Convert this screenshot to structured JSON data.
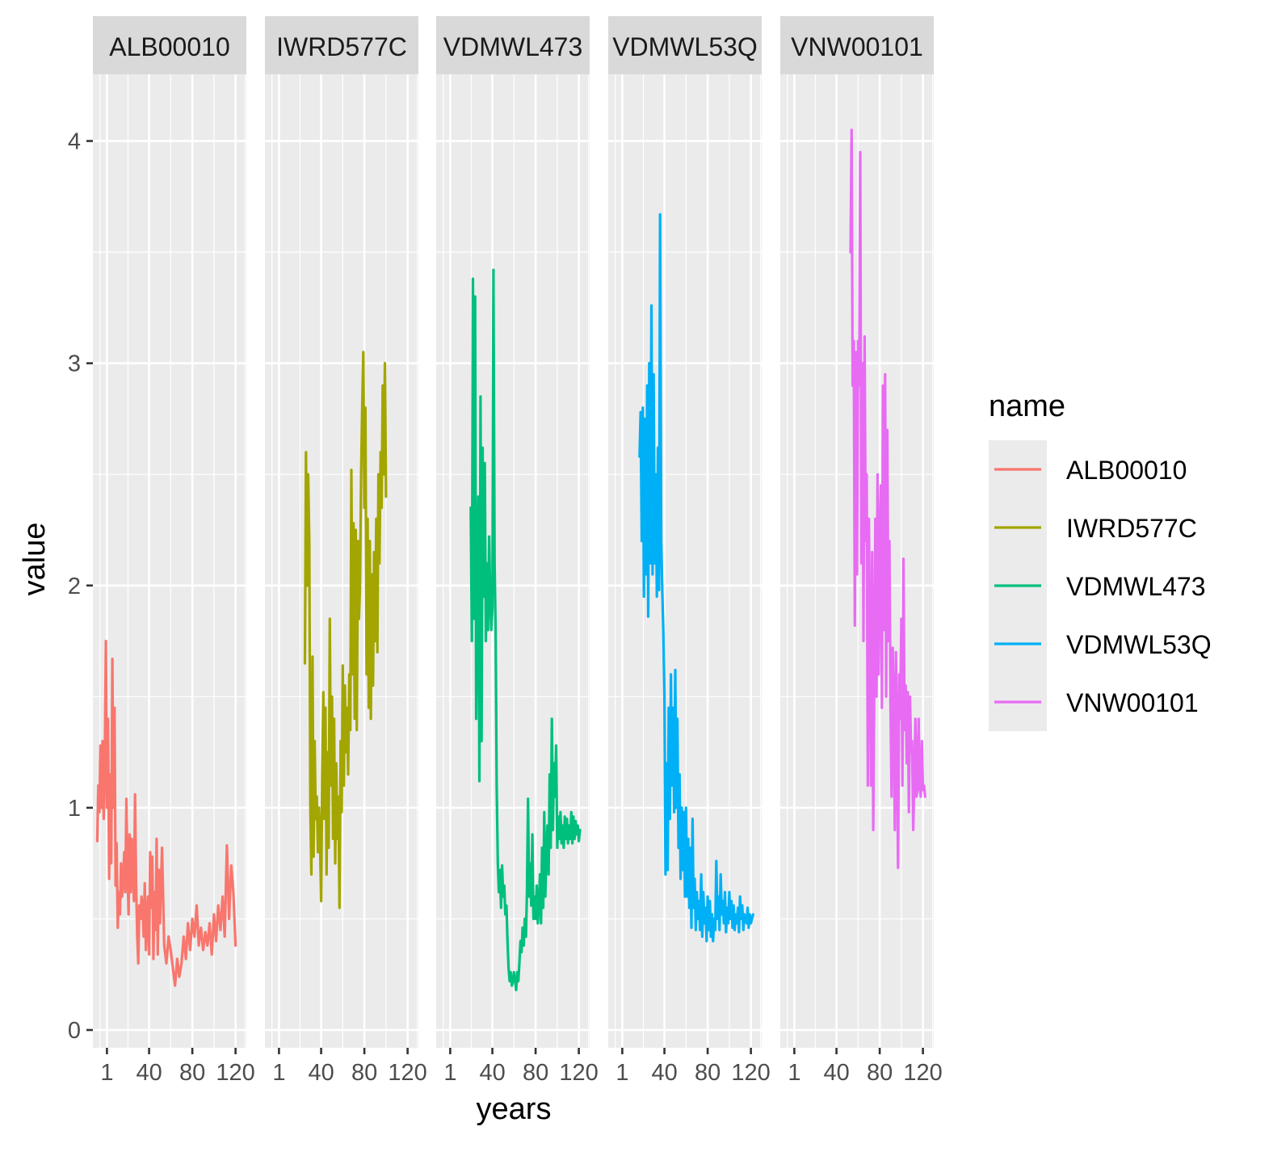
{
  "chart_data": {
    "type": "line",
    "faceted": true,
    "xlabel": "years",
    "ylabel": "value",
    "xlim": [
      -12,
      130
    ],
    "ylim": [
      -0.08,
      4.3
    ],
    "x_ticks": [
      1,
      40,
      80,
      120
    ],
    "y_ticks": [
      0,
      1,
      2,
      3,
      4
    ],
    "grid": true,
    "legend": {
      "title": "name",
      "position": "right"
    },
    "series": [
      {
        "name": "ALB00010",
        "color": "#F8766D",
        "x": [
          -8,
          -7,
          -6,
          -5,
          -4,
          -3,
          -2,
          -1,
          0,
          1,
          2,
          3,
          4,
          5,
          6,
          7,
          8,
          9,
          10,
          11,
          12,
          13,
          14,
          15,
          16,
          17,
          18,
          19,
          20,
          21,
          22,
          23,
          24,
          25,
          26,
          27,
          28,
          29,
          30,
          31,
          32,
          33,
          34,
          35,
          36,
          37,
          38,
          39,
          40,
          41,
          42,
          43,
          44,
          45,
          46,
          47,
          48,
          49,
          50,
          52,
          54,
          56,
          58,
          60,
          62,
          64,
          66,
          68,
          70,
          72,
          74,
          76,
          78,
          80,
          82,
          84,
          86,
          88,
          90,
          92,
          94,
          96,
          98,
          100,
          102,
          104,
          106,
          108,
          110,
          112,
          114,
          116,
          118,
          120
        ],
        "y": [
          0.85,
          1.1,
          0.98,
          1.28,
          1.0,
          1.3,
          0.95,
          1.2,
          1.75,
          1.0,
          1.4,
          0.68,
          1.15,
          0.75,
          1.67,
          1.0,
          1.45,
          0.65,
          0.84,
          0.46,
          0.62,
          0.52,
          0.75,
          0.6,
          0.68,
          0.8,
          0.62,
          1.04,
          0.72,
          0.52,
          0.88,
          0.62,
          0.86,
          0.7,
          0.58,
          1.06,
          0.66,
          0.42,
          0.3,
          0.56,
          0.5,
          0.6,
          0.55,
          0.42,
          0.66,
          0.36,
          0.48,
          0.6,
          0.34,
          0.8,
          0.55,
          0.78,
          0.32,
          0.62,
          0.45,
          0.86,
          0.34,
          0.72,
          0.48,
          0.82,
          0.38,
          0.3,
          0.42,
          0.36,
          0.28,
          0.2,
          0.32,
          0.24,
          0.3,
          0.42,
          0.32,
          0.48,
          0.36,
          0.5,
          0.42,
          0.56,
          0.38,
          0.46,
          0.36,
          0.44,
          0.38,
          0.48,
          0.34,
          0.52,
          0.4,
          0.56,
          0.45,
          0.6,
          0.42,
          0.83,
          0.5,
          0.74,
          0.62,
          0.38
        ]
      },
      {
        "name": "IWRD577C",
        "color": "#A3A500",
        "x": [
          25,
          26,
          27,
          28,
          29,
          30,
          31,
          32,
          33,
          34,
          35,
          36,
          37,
          38,
          39,
          40,
          41,
          42,
          43,
          44,
          45,
          46,
          47,
          48,
          49,
          50,
          51,
          52,
          53,
          54,
          55,
          56,
          57,
          58,
          59,
          60,
          61,
          62,
          63,
          64,
          65,
          66,
          67,
          68,
          69,
          70,
          71,
          72,
          73,
          74,
          75,
          76,
          77,
          78,
          79,
          80,
          81,
          82,
          83,
          84,
          85,
          86,
          87,
          88,
          89,
          90,
          91,
          92,
          93,
          94,
          95,
          96,
          97,
          98,
          99,
          100
        ],
        "y": [
          1.65,
          2.6,
          2.0,
          2.5,
          2.2,
          1.0,
          0.7,
          1.68,
          0.78,
          1.3,
          0.95,
          1.05,
          0.8,
          1.0,
          0.85,
          0.58,
          1.15,
          1.52,
          0.95,
          1.45,
          0.7,
          1.25,
          0.82,
          1.85,
          1.1,
          1.5,
          0.86,
          1.4,
          0.75,
          1.2,
          0.86,
          1.05,
          0.55,
          1.3,
          0.98,
          1.64,
          1.1,
          1.55,
          1.25,
          1.45,
          1.15,
          1.6,
          1.35,
          2.52,
          1.6,
          2.28,
          1.4,
          2.25,
          1.35,
          2.2,
          1.85,
          2.0,
          2.5,
          2.8,
          3.05,
          2.35,
          2.8,
          1.6,
          2.3,
          1.45,
          2.2,
          1.4,
          2.05,
          1.55,
          2.15,
          1.75,
          2.3,
          1.7,
          2.5,
          2.1,
          2.6,
          2.35,
          2.9,
          2.5,
          3.0,
          2.4
        ]
      },
      {
        "name": "VDMWL473",
        "color": "#00BF7D",
        "x": [
          20,
          21,
          22,
          23,
          24,
          25,
          26,
          27,
          28,
          29,
          30,
          31,
          32,
          33,
          34,
          35,
          36,
          37,
          38,
          39,
          40,
          41,
          42,
          43,
          44,
          45,
          46,
          47,
          48,
          49,
          50,
          51,
          52,
          53,
          54,
          55,
          56,
          57,
          58,
          59,
          60,
          61,
          62,
          63,
          64,
          65,
          66,
          67,
          68,
          69,
          70,
          71,
          72,
          73,
          74,
          75,
          76,
          77,
          78,
          79,
          80,
          81,
          82,
          83,
          84,
          85,
          86,
          87,
          88,
          89,
          90,
          91,
          92,
          93,
          94,
          95,
          96,
          97,
          98,
          99,
          100,
          101,
          102,
          103,
          104,
          105,
          106,
          107,
          108,
          109,
          110,
          111,
          112,
          113,
          114,
          115,
          116,
          117,
          118,
          119,
          120,
          121
        ],
        "y": [
          2.35,
          1.75,
          3.38,
          1.85,
          3.3,
          1.4,
          1.88,
          2.4,
          1.12,
          2.85,
          1.3,
          2.62,
          1.95,
          2.55,
          1.75,
          2.1,
          1.8,
          2.22,
          1.95,
          1.8,
          1.9,
          3.42,
          2.1,
          1.8,
          1.1,
          0.75,
          0.62,
          0.72,
          0.55,
          0.74,
          0.6,
          0.65,
          0.52,
          0.56,
          0.4,
          0.28,
          0.22,
          0.26,
          0.2,
          0.22,
          0.26,
          0.22,
          0.18,
          0.26,
          0.22,
          0.3,
          0.4,
          0.35,
          0.46,
          0.38,
          0.5,
          0.42,
          0.62,
          1.04,
          0.6,
          0.75,
          0.56,
          0.88,
          0.5,
          0.6,
          0.5,
          0.65,
          0.48,
          0.56,
          0.7,
          0.48,
          0.82,
          0.55,
          0.98,
          0.6,
          0.8,
          0.92,
          0.7,
          1.15,
          0.82,
          1.4,
          0.9,
          1.2,
          1.05,
          1.28,
          0.82,
          0.96,
          0.86,
          0.98,
          0.84,
          0.92,
          0.82,
          0.96,
          0.86,
          0.95,
          0.84,
          0.92,
          0.86,
          0.98,
          0.84,
          0.96,
          0.86,
          0.94,
          0.88,
          0.92,
          0.85,
          0.9
        ]
      },
      {
        "name": "VDMWL53Q",
        "color": "#00B0F6",
        "x": [
          17,
          18,
          19,
          20,
          21,
          22,
          23,
          24,
          25,
          26,
          27,
          28,
          29,
          30,
          31,
          32,
          33,
          34,
          35,
          36,
          37,
          38,
          39,
          40,
          41,
          42,
          43,
          44,
          45,
          46,
          47,
          48,
          49,
          50,
          51,
          52,
          53,
          54,
          55,
          56,
          57,
          58,
          59,
          60,
          61,
          62,
          63,
          64,
          65,
          66,
          67,
          68,
          69,
          70,
          71,
          72,
          73,
          74,
          75,
          76,
          77,
          78,
          79,
          80,
          81,
          82,
          83,
          84,
          85,
          86,
          87,
          88,
          89,
          90,
          91,
          92,
          93,
          94,
          95,
          96,
          97,
          98,
          99,
          100,
          101,
          102,
          103,
          104,
          105,
          106,
          107,
          108,
          109,
          110,
          111,
          112,
          113,
          114,
          115,
          116,
          117,
          118,
          119,
          120,
          121,
          122
        ],
        "y": [
          2.58,
          2.78,
          2.2,
          2.8,
          1.95,
          2.75,
          2.05,
          2.9,
          1.86,
          3.0,
          2.1,
          3.26,
          2.05,
          2.95,
          2.1,
          2.5,
          1.95,
          2.62,
          1.98,
          3.67,
          2.2,
          1.98,
          1.8,
          1.5,
          0.7,
          1.2,
          0.72,
          1.45,
          0.95,
          1.6,
          1.1,
          1.45,
          0.98,
          1.62,
          1.0,
          1.4,
          0.82,
          1.15,
          0.68,
          1.0,
          0.72,
          0.98,
          0.6,
          1.0,
          0.6,
          0.86,
          0.55,
          0.82,
          0.46,
          0.95,
          0.55,
          0.68,
          0.45,
          0.62,
          0.5,
          0.58,
          0.45,
          0.7,
          0.42,
          0.62,
          0.48,
          0.55,
          0.4,
          0.6,
          0.45,
          0.58,
          0.42,
          0.52,
          0.4,
          0.5,
          0.45,
          0.76,
          0.5,
          0.6,
          0.45,
          0.7,
          0.52,
          0.58,
          0.48,
          0.62,
          0.44,
          0.55,
          0.48,
          0.62,
          0.5,
          0.58,
          0.46,
          0.56,
          0.45,
          0.52,
          0.48,
          0.55,
          0.44,
          0.6,
          0.5,
          0.56,
          0.45,
          0.52,
          0.5,
          0.48,
          0.55,
          0.46,
          0.52,
          0.48,
          0.5,
          0.52
        ]
      },
      {
        "name": "VNW00101",
        "color": "#E76BF3",
        "x": [
          53,
          54,
          55,
          56,
          57,
          58,
          59,
          60,
          61,
          62,
          63,
          64,
          65,
          66,
          67,
          68,
          69,
          70,
          71,
          72,
          73,
          74,
          75,
          76,
          77,
          78,
          79,
          80,
          81,
          82,
          83,
          84,
          85,
          86,
          87,
          88,
          89,
          90,
          91,
          92,
          93,
          94,
          95,
          96,
          97,
          98,
          99,
          100,
          101,
          102,
          103,
          104,
          105,
          106,
          107,
          108,
          109,
          110,
          111,
          112,
          113,
          114,
          115,
          116,
          117,
          118,
          119,
          120,
          121,
          122
        ],
        "y": [
          3.5,
          4.05,
          2.9,
          3.1,
          1.82,
          3.05,
          2.05,
          3.1,
          2.9,
          3.95,
          2.1,
          3.0,
          1.75,
          3.12,
          2.2,
          2.5,
          1.1,
          2.3,
          1.7,
          1.1,
          2.15,
          0.9,
          1.6,
          2.3,
          1.5,
          2.5,
          1.6,
          2.2,
          2.45,
          1.45,
          2.9,
          1.8,
          2.95,
          1.5,
          2.7,
          1.75,
          2.2,
          1.45,
          1.05,
          1.72,
          1.46,
          0.9,
          1.7,
          1.3,
          0.73,
          1.6,
          1.4,
          1.85,
          1.1,
          2.12,
          1.35,
          1.55,
          1.2,
          1.52,
          0.98,
          1.5,
          1.25,
          1.3,
          0.9,
          1.12,
          1.4,
          1.05,
          1.08,
          1.4,
          1.1,
          1.05,
          1.3,
          1.08,
          1.1,
          1.05
        ]
      }
    ]
  }
}
